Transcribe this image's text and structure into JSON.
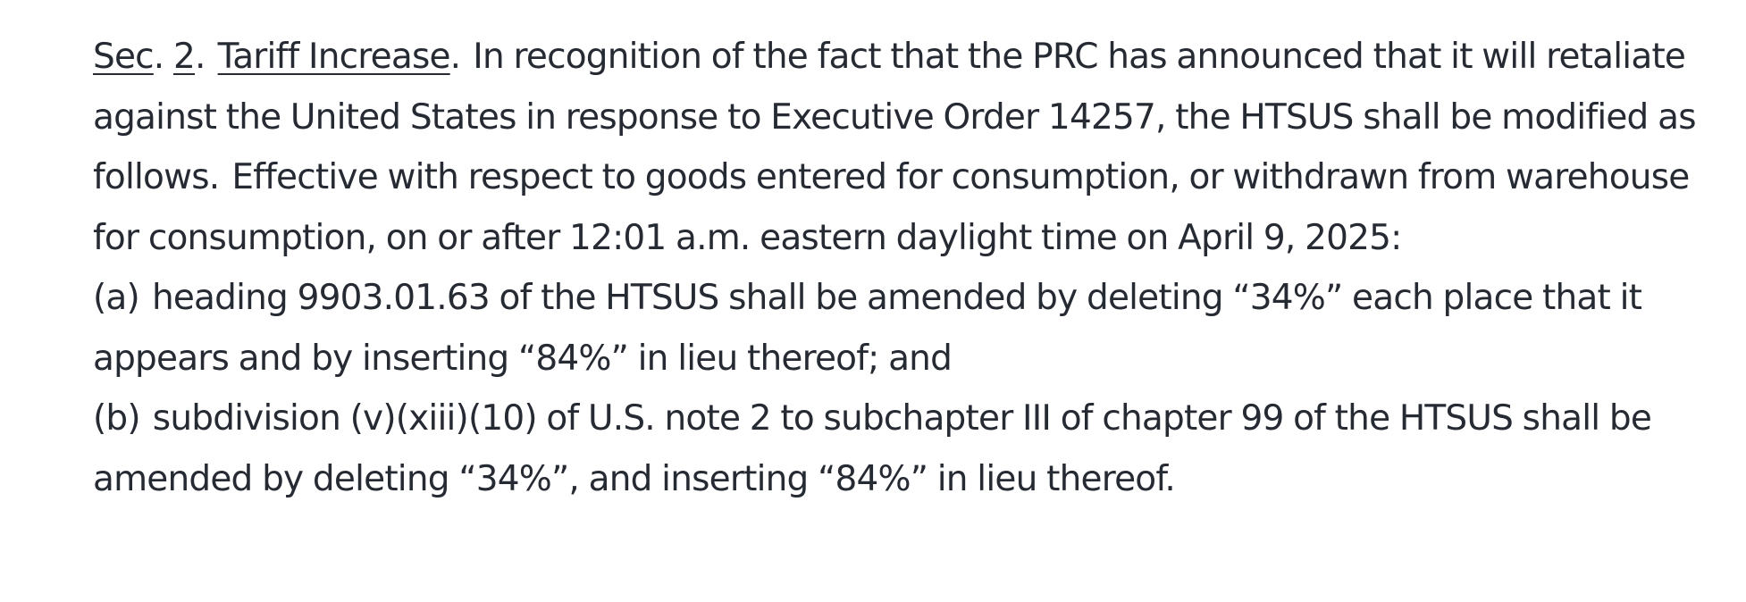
{
  "section": {
    "sec_label": "Sec",
    "sec_number": "2",
    "heading": "Tariff Increase",
    "intro": "In recognition of the fact that the PRC has announced that it will retaliate against the United States in response to Executive Order 14257, the HTSUS shall be modified as follows.",
    "effective": "Effective with respect to goods entered for consumption, or withdrawn from warehouse for consumption, on or after 12:01 a.m. eastern daylight time on April 9, 2025:"
  },
  "items": [
    {
      "marker": "(a)",
      "text": "heading 9903.01.63 of the HTSUS shall be amended by deleting “34%” each place that it appears and by inserting “84%” in lieu thereof; and"
    },
    {
      "marker": "(b)",
      "text": "subdivision (v)(xiii)(10) of U.S. note 2 to subchapter III of chapter 99 of the HTSUS shall be amended by deleting “34%”, and inserting “84%” in lieu thereof."
    }
  ]
}
